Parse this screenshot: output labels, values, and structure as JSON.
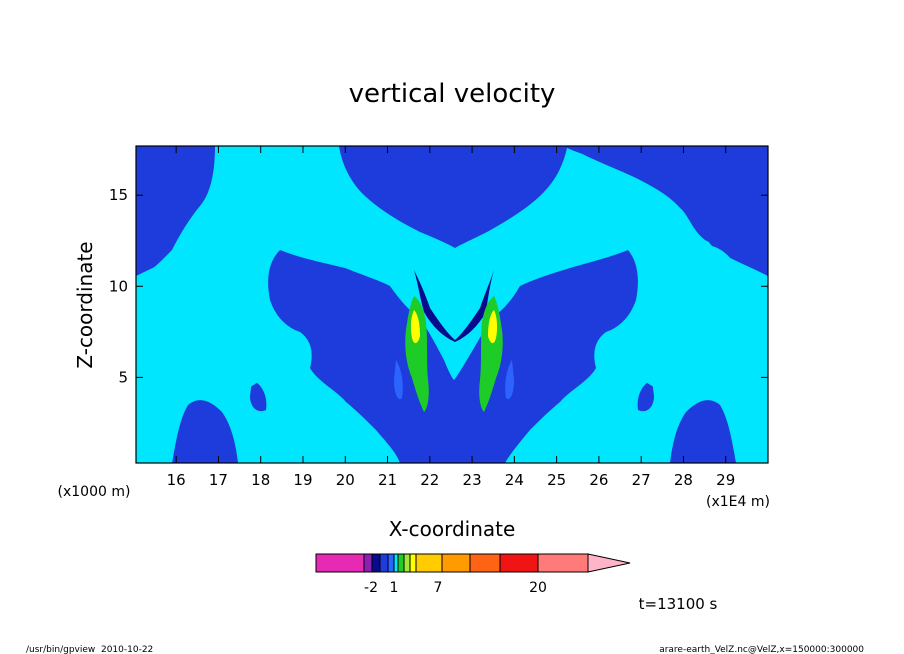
{
  "chart_data": {
    "type": "heatmap",
    "title": "vertical velocity",
    "xlabel": "X-coordinate",
    "ylabel": "Z-coordinate",
    "x_unit": "(x1E4 m)",
    "y_unit": "(x1000 m)",
    "xlim": [
      15.05,
      30.0
    ],
    "ylim": [
      0.3,
      17.7
    ],
    "x_ticks": [
      "16",
      "17",
      "18",
      "19",
      "20",
      "21",
      "22",
      "23",
      "24",
      "25",
      "26",
      "27",
      "28",
      "29"
    ],
    "y_ticks": [
      "5",
      "10",
      "15"
    ],
    "colors": {
      "magenta": "#e62ab4",
      "purple": "#8c1fb4",
      "navy": "#0a0a8c",
      "blue": "#1e3cdc",
      "mid_blue": "#2d64ff",
      "cyan": "#00e6ff",
      "green": "#1ecc28",
      "light_green": "#a0e632",
      "yellow": "#ffff00",
      "gold": "#ffcc00",
      "orange": "#ff9a00",
      "dark_orange": "#ff6414",
      "red": "#f01414",
      "salmon": "#ff7a78",
      "pink": "#ffb4c8"
    },
    "colorbar_labels": [
      "-2",
      "1",
      "7",
      "20"
    ],
    "annotations": {
      "time": "t=13100 s",
      "footer_left": "/usr/bin/gpview  2010-10-22",
      "footer_right": "arare-earth_VelZ.nc@VelZ,x=150000:300000"
    }
  }
}
